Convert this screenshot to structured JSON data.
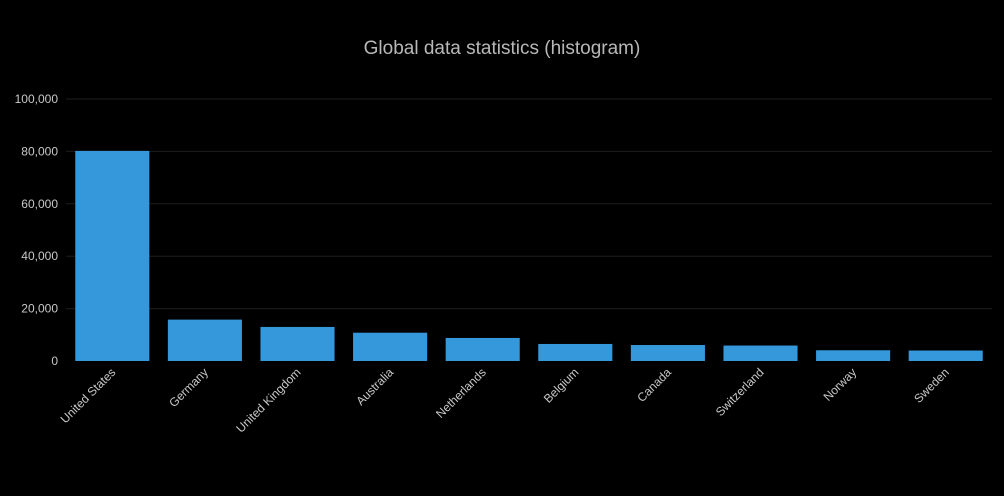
{
  "chart_data": {
    "type": "bar",
    "title": "Global data statistics (histogram)",
    "xlabel": "",
    "ylabel": "",
    "ylim": [
      0,
      100000
    ],
    "yticks": [
      "0",
      "20,000",
      "40,000",
      "60,000",
      "80,000",
      "100,000"
    ],
    "ytick_values": [
      0,
      20000,
      40000,
      60000,
      80000,
      100000
    ],
    "categories": [
      "United States",
      "Germany",
      "United Kingdom",
      "Australia",
      "Netherlands",
      "Belgium",
      "Canada",
      "Switzerland",
      "Norway",
      "Sweden"
    ],
    "values": [
      80200,
      15800,
      13000,
      10800,
      8800,
      6500,
      6100,
      5900,
      4100,
      4000
    ],
    "grid": true,
    "legend": "none",
    "colors": {
      "bar": "#3498db",
      "grid": "#1e1e1e",
      "text": "#c8c8c8",
      "title": "#b8b8b8",
      "background": "#000000"
    }
  }
}
